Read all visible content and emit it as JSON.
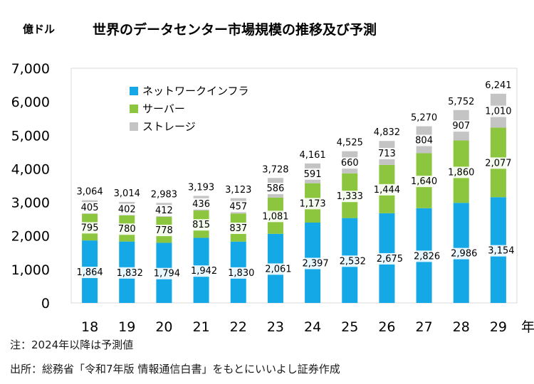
{
  "chart_data": {
    "type": "bar",
    "stacked": true,
    "title": "世界のデータセンター市場規模の推移及び予測",
    "ylabel": "億ドル",
    "xlabel": "年",
    "categories": [
      "18",
      "19",
      "20",
      "21",
      "22",
      "23",
      "24",
      "25",
      "26",
      "27",
      "28",
      "29"
    ],
    "ylim": [
      0,
      7000
    ],
    "yticks": [
      0,
      1000,
      2000,
      3000,
      4000,
      5000,
      6000,
      7000
    ],
    "ytick_labels": [
      "0",
      "1,000",
      "2,000",
      "3,000",
      "4,000",
      "5,000",
      "6,000",
      "7,000"
    ],
    "series": [
      {
        "name": "ネットワークインフラ",
        "color": "#14a8e6",
        "values": [
          1864,
          1832,
          1794,
          1942,
          1830,
          2061,
          2397,
          2532,
          2675,
          2826,
          2986,
          3154
        ],
        "labels": [
          "1,864",
          "1,832",
          "1,794",
          "1,942",
          "1,830",
          "2,061",
          "2,397",
          "2,532",
          "2,675",
          "2,826",
          "2,986",
          "3,154"
        ]
      },
      {
        "name": "サーバー",
        "color": "#8cc63e",
        "values": [
          795,
          780,
          778,
          815,
          837,
          1081,
          1173,
          1333,
          1444,
          1640,
          1860,
          2077
        ],
        "labels": [
          "795",
          "780",
          "778",
          "815",
          "837",
          "1,081",
          "1,173",
          "1,333",
          "1,444",
          "1,640",
          "1,860",
          "2,077"
        ]
      },
      {
        "name": "ストレージ",
        "color": "#c4c4c4",
        "values": [
          405,
          402,
          412,
          436,
          457,
          586,
          591,
          660,
          713,
          804,
          907,
          1010
        ],
        "labels": [
          "405",
          "402",
          "412",
          "436",
          "457",
          "586",
          "591",
          "660",
          "713",
          "804",
          "907",
          "1,010"
        ]
      }
    ],
    "totals": [
      3064,
      3014,
      2983,
      3193,
      3123,
      3728,
      4161,
      4525,
      4832,
      5270,
      5752,
      6241
    ],
    "total_labels": [
      "3,064",
      "3,014",
      "2,983",
      "3,193",
      "3,123",
      "3,728",
      "4,161",
      "4,525",
      "4,832",
      "5,270",
      "5,752",
      "6,241"
    ],
    "legend_position": "top-left",
    "grid": false
  },
  "footnotes": {
    "note": "注：2024年以降は予測値",
    "source": "出所：総務省「令和7年版 情報通信白書」をもとにいいよし証券作成"
  }
}
